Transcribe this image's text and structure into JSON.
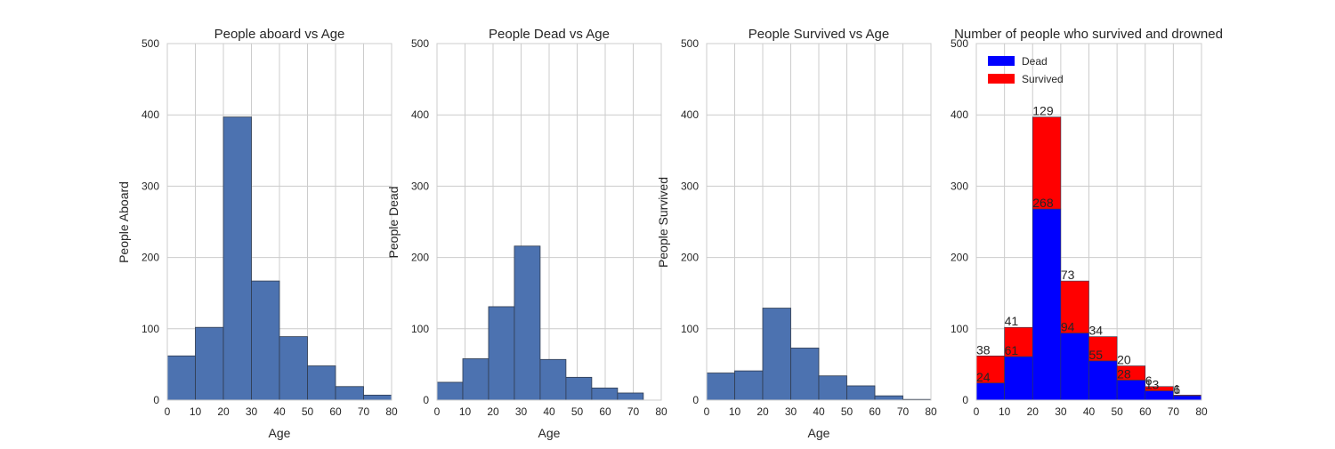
{
  "figure": {
    "background": "#ffffff",
    "bar_color": "#4c72b0",
    "edge_color": "#2f3b4f",
    "grid_color": "#cccccc"
  },
  "chart_data": [
    {
      "type": "bar",
      "title": "People aboard vs Age",
      "xlabel": "Age",
      "ylabel": "People Aboard",
      "xlim": [
        0,
        80
      ],
      "ylim": [
        0,
        500
      ],
      "xticks": [
        0,
        10,
        20,
        30,
        40,
        50,
        60,
        70,
        80
      ],
      "yticks": [
        0,
        100,
        200,
        300,
        400,
        500
      ],
      "grid": true,
      "bin_edges": [
        0,
        10,
        20,
        30,
        40,
        50,
        60,
        70,
        80
      ],
      "values": [
        62,
        102,
        397,
        167,
        89,
        48,
        19,
        7
      ]
    },
    {
      "type": "bar",
      "title": "People Dead vs Age",
      "xlabel": "Age",
      "ylabel": "People Dead",
      "xlim": [
        0,
        80
      ],
      "ylim": [
        0,
        500
      ],
      "xticks": [
        0,
        10,
        20,
        30,
        40,
        50,
        60,
        70,
        80
      ],
      "yticks": [
        0,
        100,
        200,
        300,
        400,
        500
      ],
      "grid": true,
      "bin_edges": [
        0,
        9.2,
        18.4,
        27.6,
        36.8,
        46,
        55.2,
        64.4,
        73.6
      ],
      "values": [
        25,
        58,
        131,
        216,
        57,
        32,
        17,
        10
      ]
    },
    {
      "type": "bar",
      "title": "People Survived vs Age",
      "xlabel": "Age",
      "ylabel": "People Survived",
      "xlim": [
        0,
        80
      ],
      "ylim": [
        0,
        500
      ],
      "xticks": [
        0,
        10,
        20,
        30,
        40,
        50,
        60,
        70,
        80
      ],
      "yticks": [
        0,
        100,
        200,
        300,
        400,
        500
      ],
      "grid": true,
      "bin_edges": [
        0,
        10,
        20,
        30,
        40,
        50,
        60,
        70,
        80
      ],
      "values": [
        38,
        41,
        129,
        73,
        34,
        20,
        6,
        1
      ]
    },
    {
      "type": "bar",
      "stacked": true,
      "title": "Number of people who survived and drowned",
      "xlabel": "",
      "ylabel": "",
      "xlim": [
        0,
        80
      ],
      "ylim": [
        0,
        500
      ],
      "xticks": [
        0,
        10,
        20,
        30,
        40,
        50,
        60,
        70,
        80
      ],
      "yticks": [
        0,
        100,
        200,
        300,
        400,
        500
      ],
      "grid": true,
      "legend": "top-left",
      "bin_edges": [
        0,
        10,
        20,
        30,
        40,
        50,
        60,
        70,
        80
      ],
      "series": [
        {
          "name": "Dead",
          "color": "#0000ff",
          "values": [
            24,
            61,
            268,
            94,
            55,
            28,
            13,
            6
          ]
        },
        {
          "name": "Survived",
          "color": "#ff0000",
          "values": [
            38,
            41,
            129,
            73,
            34,
            20,
            6,
            1
          ]
        }
      ],
      "data_labels": [
        {
          "bin": 0,
          "text": "24",
          "at": "dead_top"
        },
        {
          "bin": 0,
          "text": "38",
          "at": "survived_top"
        },
        {
          "bin": 1,
          "text": "61",
          "at": "dead_top"
        },
        {
          "bin": 1,
          "text": "41",
          "at": "survived_top"
        },
        {
          "bin": 2,
          "text": "268",
          "at": "dead_top"
        },
        {
          "bin": 2,
          "text": "129",
          "at": "survived_top"
        },
        {
          "bin": 3,
          "text": "94",
          "at": "dead_top"
        },
        {
          "bin": 3,
          "text": "73",
          "at": "survived_top"
        },
        {
          "bin": 4,
          "text": "55",
          "at": "dead_top"
        },
        {
          "bin": 4,
          "text": "34",
          "at": "survived_top"
        },
        {
          "bin": 5,
          "text": "28",
          "at": "dead_top"
        },
        {
          "bin": 5,
          "text": "20",
          "at": "survived_top"
        },
        {
          "bin": 6,
          "text": "13",
          "at": "dead_top"
        },
        {
          "bin": 6,
          "text": "6",
          "at": "survived_top"
        },
        {
          "bin": 7,
          "text": "6",
          "at": "dead_top"
        },
        {
          "bin": 7,
          "text": "1",
          "at": "survived_top"
        }
      ]
    }
  ]
}
